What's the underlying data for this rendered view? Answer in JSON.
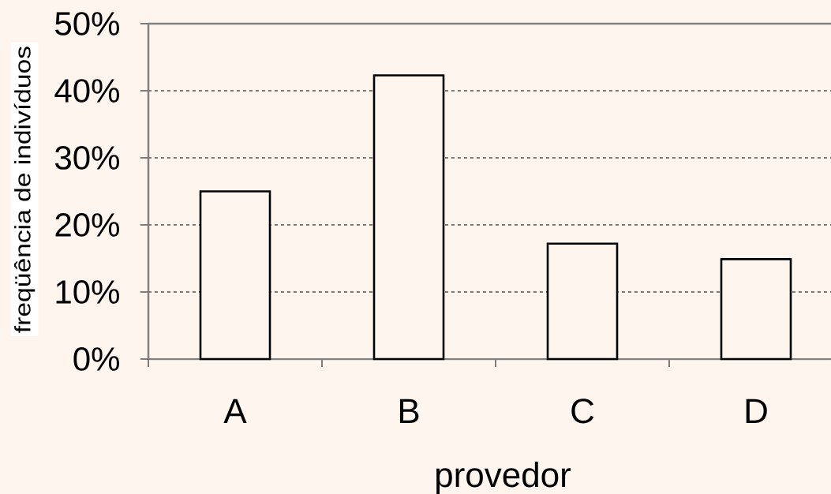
{
  "chart_data": {
    "type": "bar",
    "xlabel": "provedor",
    "ylabel": "freqüência de indivíduos",
    "categories": [
      "A",
      "B",
      "C",
      "D"
    ],
    "values": [
      25,
      42.3,
      17.2,
      14.9
    ],
    "color": "#000000",
    "ylim": [
      0,
      50
    ],
    "yticks": [
      {
        "value": 0,
        "label": "0%"
      },
      {
        "value": 10,
        "label": "10%"
      },
      {
        "value": 20,
        "label": "20%"
      },
      {
        "value": 30,
        "label": "30%"
      },
      {
        "value": 40,
        "label": "40%"
      },
      {
        "value": 50,
        "label": "50%"
      }
    ],
    "grid": "y"
  }
}
